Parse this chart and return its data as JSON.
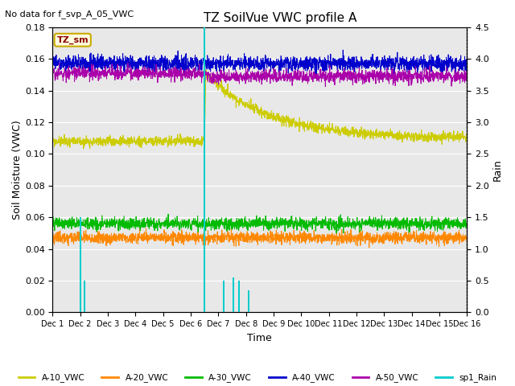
{
  "title": "TZ SoilVue VWC profile A",
  "no_data_text": "No data for f_svp_A_05_VWC",
  "tz_sm_label": "TZ_sm",
  "xlabel": "Time",
  "ylabel": "Soil Moisture (VWC)",
  "ylabel_right": "Rain",
  "ylim_left": [
    0,
    0.18
  ],
  "ylim_right": [
    0.0,
    4.5
  ],
  "n_days": 16,
  "colors": {
    "A10": "#cccc00",
    "A20": "#ff8800",
    "A30": "#00bb00",
    "A40": "#0000cc",
    "A50": "#aa00aa",
    "rain": "#00cccc"
  },
  "bg_color": "#e8e8e8",
  "legend_labels": [
    "A-10_VWC",
    "A-20_VWC",
    "A-30_VWC",
    "A-40_VWC",
    "A-50_VWC",
    "sp1_Rain"
  ],
  "tick_labels": [
    "Dec 1",
    "Dec 2",
    "Dec 3",
    "Dec 4",
    "Dec 5",
    "Dec 6",
    "Dec 7",
    "Dec 8",
    "Dec 9",
    "Dec 10",
    "Dec 11",
    "Dec 12",
    "Dec 13",
    "Dec 14",
    "Dec 15",
    "Dec 16"
  ],
  "rain_times": [
    1.0,
    1.15,
    5.5,
    6.2,
    6.55,
    6.75,
    7.1
  ],
  "rain_heights": [
    1.5,
    0.5,
    4.5,
    0.5,
    0.55,
    0.5,
    0.35
  ]
}
